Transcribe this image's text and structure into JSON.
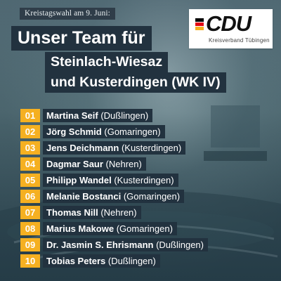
{
  "header": {
    "subtitle": "Kreistagswahl am 9. Juni:",
    "title_line1": "Unser Team für",
    "title_line2": "Steinlach-Wiesaz",
    "title_line3": "und Kusterdingen (WK IV)"
  },
  "logo": {
    "text": "CDU",
    "subtext": "Kreisverband Tübingen",
    "stripe_colors": [
      "#000000",
      "#e30613",
      "#f5b021"
    ]
  },
  "colors": {
    "number_badge": "#f5b021",
    "label_background": "#22323f"
  },
  "candidates": [
    {
      "number": "01",
      "name": "Martina Seif",
      "place": "(Dußlingen)"
    },
    {
      "number": "02",
      "name": "Jörg Schmid",
      "place": "(Gomaringen)"
    },
    {
      "number": "03",
      "name": "Jens Deichmann",
      "place": "(Kusterdingen)"
    },
    {
      "number": "04",
      "name": "Dagmar Saur",
      "place": "(Nehren)"
    },
    {
      "number": "05",
      "name": "Philipp Wandel",
      "place": "(Kusterdingen)"
    },
    {
      "number": "06",
      "name": "Melanie Bostanci",
      "place": "(Gomaringen)"
    },
    {
      "number": "07",
      "name": "Thomas Nill",
      "place": "(Nehren)"
    },
    {
      "number": "08",
      "name": "Marius Makowe",
      "place": "(Gomaringen)"
    },
    {
      "number": "09",
      "name": "Dr. Jasmin S. Ehrismann",
      "place": "(Dußlingen)"
    },
    {
      "number": "10",
      "name": "Tobias Peters",
      "place": "(Dußlingen)"
    }
  ]
}
